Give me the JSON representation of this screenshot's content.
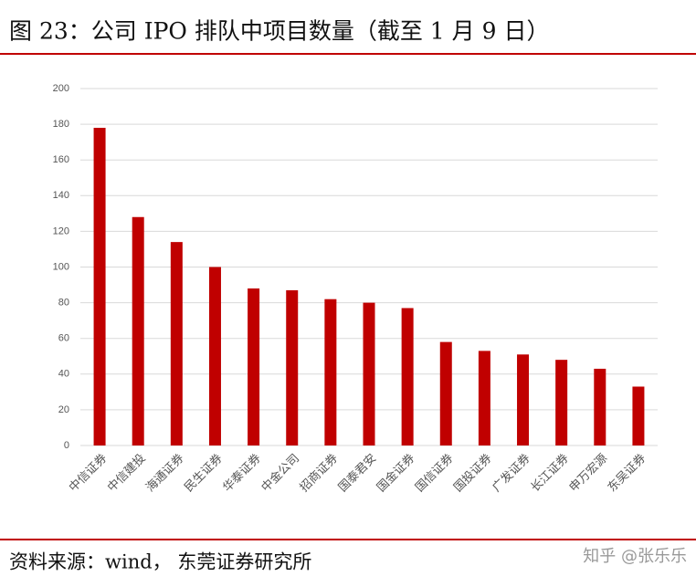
{
  "chart_data": {
    "type": "bar",
    "title": "图 23：公司 IPO 排队中项目数量（截至 1 月 9 日）",
    "source": "资料来源：wind， 东莞证券研究所",
    "watermark": "知乎 @张乐乐",
    "categories": [
      "中信证券",
      "中信建投",
      "海通证券",
      "民生证券",
      "华泰证券",
      "中金公司",
      "招商证券",
      "国泰君安",
      "国金证券",
      "国信证券",
      "国投证券",
      "广发证券",
      "长江证券",
      "申万宏源",
      "东吴证券"
    ],
    "values": [
      178,
      128,
      114,
      100,
      88,
      87,
      82,
      80,
      77,
      58,
      53,
      51,
      48,
      43,
      33
    ],
    "color": "#c00000",
    "ylim": [
      0,
      200
    ],
    "yticks": [
      0,
      20,
      40,
      60,
      80,
      100,
      120,
      140,
      160,
      180,
      200
    ],
    "grid": true
  }
}
